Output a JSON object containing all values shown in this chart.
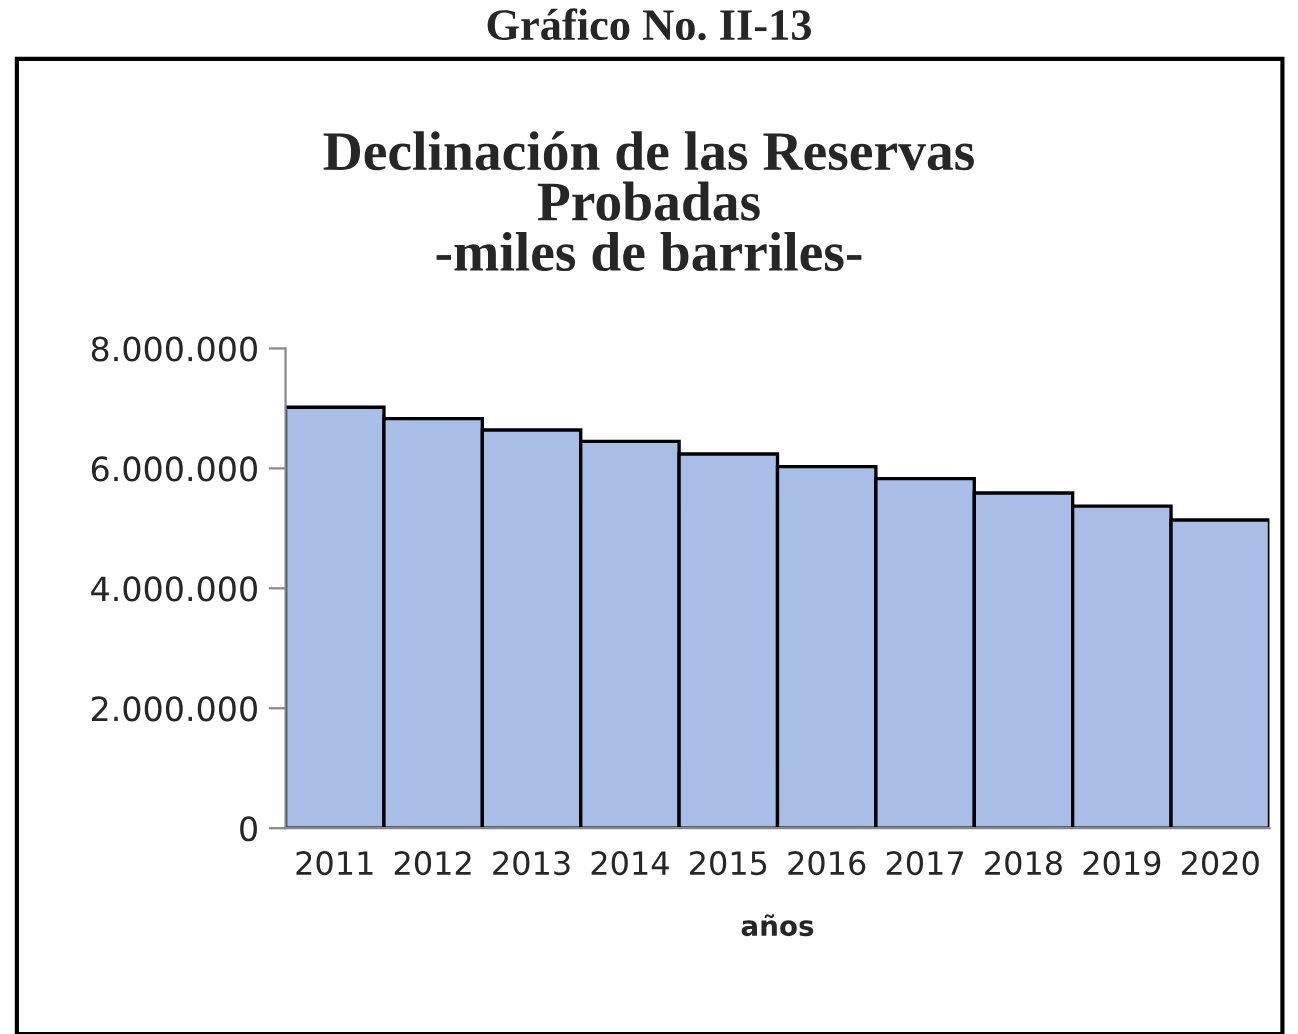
{
  "chart_data": {
    "type": "bar",
    "title": "Declinación de las Reservas\nProbadas\n-miles de barriles-",
    "xlabel": "años",
    "annotations": [
      "Gráfico No. II-13"
    ],
    "categories": [
      "2011",
      "2012",
      "2013",
      "2014",
      "2015",
      "2016",
      "2017",
      "2018",
      "2019",
      "2020"
    ],
    "values": [
      7020000,
      6830000,
      6640000,
      6450000,
      6240000,
      6030000,
      5830000,
      5590000,
      5370000,
      5140000
    ],
    "color": "#a9bee6",
    "ylim": [
      0,
      8000000
    ],
    "yticks": [
      {
        "value": 0,
        "label": "0"
      },
      {
        "value": 2000000,
        "label": "2.000.000"
      },
      {
        "value": 4000000,
        "label": "4.000.000"
      },
      {
        "value": 6000000,
        "label": "6.000.000"
      },
      {
        "value": 8000000,
        "label": "8.000.000"
      }
    ],
    "grid": false,
    "legend": false
  }
}
